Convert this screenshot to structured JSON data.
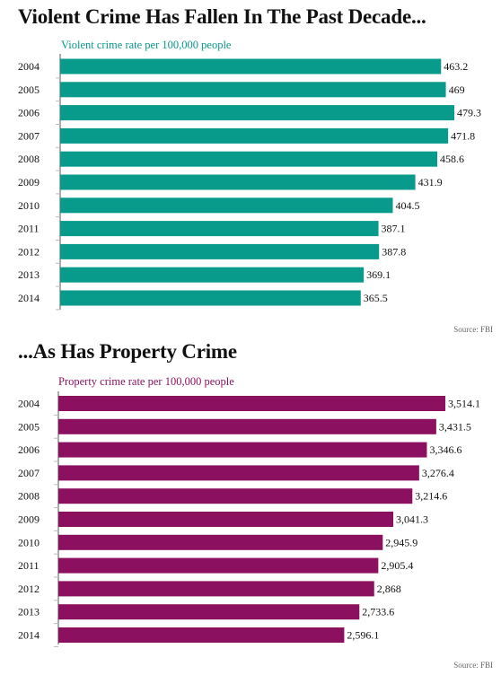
{
  "charts_header": {
    "title1": "Violent Crime Has Fallen In The Past Decade...",
    "subtitle1": "Violent crime rate per 100,000 people",
    "source1": "Source: FBI",
    "title2": "...As Has Property Crime",
    "subtitle2": "Property crime rate per 100,000 people",
    "source2": "Source: FBI"
  },
  "colors": {
    "violent": "#089b8b",
    "property": "#8b1160"
  },
  "chart_data": [
    {
      "type": "bar",
      "orientation": "horizontal",
      "title": "Violent Crime Has Fallen In The Past Decade...",
      "subtitle": "Violent crime rate per 100,000 people",
      "source": "Source: FBI",
      "categories": [
        "2004",
        "2005",
        "2006",
        "2007",
        "2008",
        "2009",
        "2010",
        "2011",
        "2012",
        "2013",
        "2014"
      ],
      "values": [
        463.2,
        469,
        479.3,
        471.8,
        458.6,
        431.9,
        404.5,
        387.1,
        387.8,
        369.1,
        365.5
      ],
      "labels": [
        "463.2",
        "469",
        "479.3",
        "471.8",
        "458.6",
        "431.9",
        "404.5",
        "387.1",
        "387.8",
        "369.1",
        "365.5"
      ]
    },
    {
      "type": "bar",
      "orientation": "horizontal",
      "title": "...As Has Property Crime",
      "subtitle": "Property crime rate per 100,000 people",
      "source": "Source: FBI",
      "categories": [
        "2004",
        "2005",
        "2006",
        "2007",
        "2008",
        "2009",
        "2010",
        "2011",
        "2012",
        "2013",
        "2014"
      ],
      "values": [
        3514.1,
        3431.5,
        3346.6,
        3276.4,
        3214.6,
        3041.3,
        2945.9,
        2905.4,
        2868,
        2733.6,
        2596.1
      ],
      "labels": [
        "3,514.1",
        "3,431.5",
        "3,346.6",
        "3,276.4",
        "3,214.6",
        "3,041.3",
        "2,945.9",
        "2,905.4",
        "2,868",
        "2,733.6",
        "2,596.1"
      ]
    }
  ]
}
